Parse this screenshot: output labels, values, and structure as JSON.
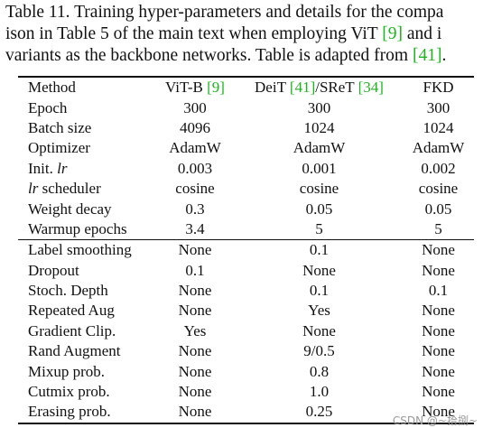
{
  "caption": {
    "lines": [
      [
        "Table 11.  Training hyper-parameters and details for the compa"
      ],
      [
        "ison in Table 5 of the main text when employing ViT ",
        "[9]",
        " and i"
      ],
      [
        "variants as the backbone networks. Table is adapted from ",
        "[41]",
        "."
      ]
    ]
  },
  "table": {
    "header": [
      [
        "Method"
      ],
      [
        "ViT-B ",
        "[9]"
      ],
      [
        "DeiT ",
        "[41]",
        "/SReT ",
        "[34]"
      ],
      [
        "FKD"
      ]
    ],
    "groups": [
      {
        "rows": [
          [
            "Epoch",
            "300",
            "300",
            "300"
          ],
          [
            "Batch size",
            "4096",
            "1024",
            "1024"
          ],
          [
            "Optimizer",
            "AdamW",
            "AdamW",
            "AdamW"
          ],
          [
            {
              "text": "Init. ",
              "emph": "lr"
            },
            "0.003",
            "0.001",
            "0.002"
          ],
          [
            {
              "emph": "lr",
              "text": " scheduler"
            },
            "cosine",
            "cosine",
            "cosine"
          ],
          [
            "Weight decay",
            "0.3",
            "0.05",
            "0.05"
          ],
          [
            "Warmup epochs",
            "3.4",
            "5",
            "5"
          ]
        ]
      },
      {
        "rows": [
          [
            "Label smoothing",
            "None",
            "0.1",
            "None"
          ],
          [
            "Dropout",
            "0.1",
            "None",
            "None"
          ],
          [
            "Stoch. Depth",
            "None",
            "0.1",
            "0.1"
          ],
          [
            "Repeated Aug",
            "None",
            "Yes",
            "None"
          ],
          [
            "Gradient Clip.",
            "Yes",
            "None",
            "None"
          ],
          [
            "Rand Augment",
            "None",
            "9/0.5",
            "None"
          ],
          [
            "Mixup prob.",
            "None",
            "0.8",
            "None"
          ],
          [
            "Cutmix prob.",
            "None",
            "1.0",
            "None"
          ],
          [
            "Erasing prob.",
            "None",
            "0.25",
            "None"
          ]
        ]
      }
    ]
  },
  "watermark": "CSDN @~拾捌~"
}
